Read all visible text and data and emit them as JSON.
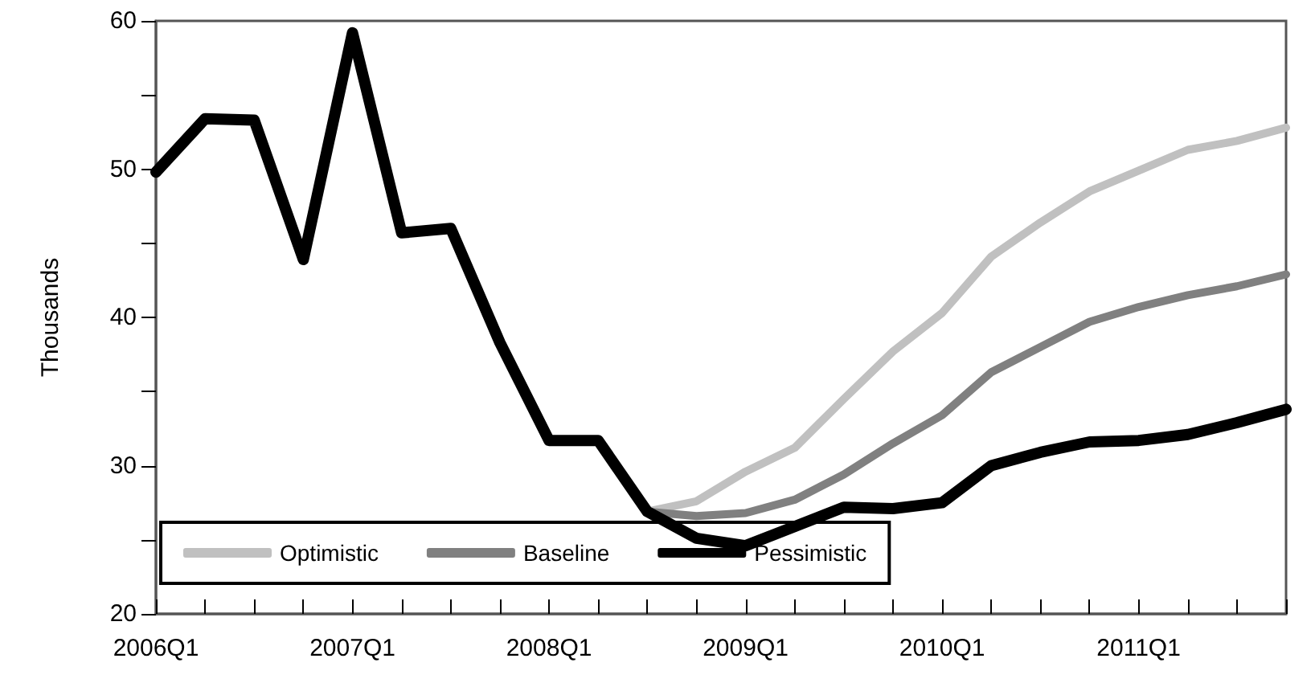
{
  "chart_data": {
    "type": "line",
    "ylabel": "Thousands",
    "categories": [
      "2006Q1",
      null,
      null,
      null,
      "2007Q1",
      null,
      null,
      null,
      "2008Q1",
      null,
      null,
      null,
      "2009Q1",
      null,
      null,
      null,
      "2010Q1",
      null,
      null,
      null,
      "2011Q1",
      null,
      null,
      null
    ],
    "series": [
      {
        "name": "Optimistic",
        "color": "#c0c0c0",
        "values": [
          null,
          null,
          null,
          null,
          null,
          null,
          null,
          null,
          null,
          null,
          26.9,
          27.6,
          29.6,
          31.2,
          34.5,
          37.7,
          40.3,
          44.1,
          46.4,
          48.5,
          49.9,
          51.3,
          51.9,
          52.8
        ]
      },
      {
        "name": "Baseline",
        "color": "#808080",
        "values": [
          null,
          null,
          null,
          null,
          null,
          null,
          null,
          null,
          null,
          null,
          26.9,
          26.6,
          26.8,
          27.7,
          29.4,
          31.5,
          33.4,
          36.3,
          38.0,
          39.7,
          40.7,
          41.5,
          42.1,
          42.9
        ]
      },
      {
        "name": "Pessimistic",
        "color": "#000000",
        "values": [
          49.8,
          53.4,
          53.3,
          43.9,
          59.2,
          45.7,
          46.0,
          38.3,
          31.7,
          31.7,
          26.9,
          25.1,
          24.6,
          25.9,
          27.2,
          27.1,
          27.5,
          30.0,
          30.9,
          31.6,
          31.7,
          32.1,
          32.9,
          33.8
        ]
      }
    ],
    "ylim": [
      20,
      60
    ],
    "yticks": [
      20,
      30,
      40,
      50,
      60
    ],
    "grid": false,
    "legend": "bottom left",
    "marker": "none",
    "line_style": "solid"
  }
}
